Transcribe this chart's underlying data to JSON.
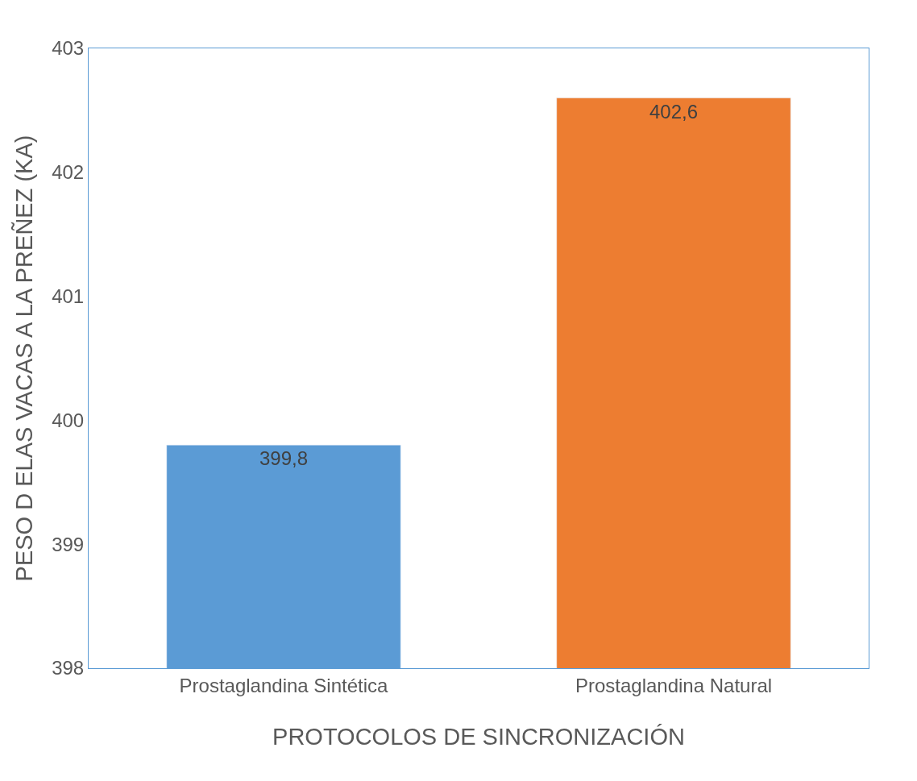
{
  "chart_data": {
    "type": "bar",
    "xlabel": "PROTOCOLOS DE SINCRONIZACIÓN",
    "ylabel": "PESO D ELAS VACAS A LA PREÑEZ (KA)",
    "categories": [
      "Prostaglandina Sintética",
      "Prostaglandina Natural"
    ],
    "values": [
      399.8,
      402.6
    ],
    "colors": [
      "#5b9bd5",
      "#ed7d31"
    ],
    "value_labels": [
      "399,8",
      "402,6"
    ],
    "ylim": [
      398,
      403
    ],
    "yticks": [
      398,
      399,
      400,
      401,
      402,
      403
    ],
    "grid": false,
    "legend": false
  }
}
